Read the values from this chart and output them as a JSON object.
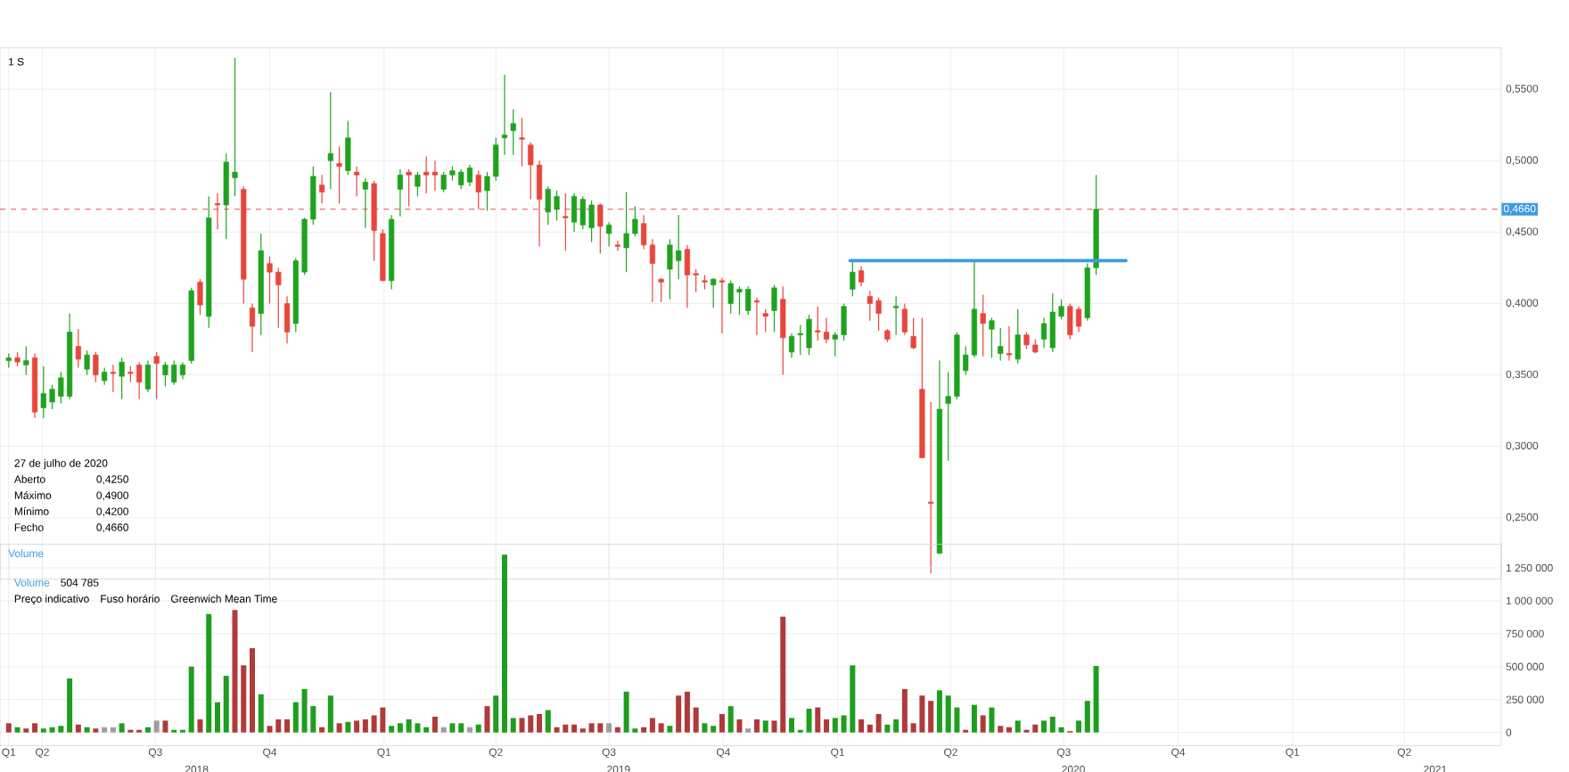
{
  "chart_data": [
    {
      "type": "candlestick",
      "title": "1 S",
      "x": [
        "2018-03-05",
        "2018-03-12",
        "2018-03-19",
        "2018-03-26",
        "2018-04-02",
        "2018-04-09",
        "2018-04-16",
        "2018-04-23",
        "2018-04-30",
        "2018-05-07",
        "2018-05-14",
        "2018-05-21",
        "2018-05-28",
        "2018-06-04",
        "2018-06-11",
        "2018-06-18",
        "2018-06-25",
        "2018-07-02",
        "2018-07-09",
        "2018-07-16",
        "2018-07-23",
        "2018-07-30",
        "2018-08-06",
        "2018-08-13",
        "2018-08-20",
        "2018-08-27",
        "2018-09-03",
        "2018-09-10",
        "2018-09-17",
        "2018-09-24",
        "2018-10-01",
        "2018-10-08",
        "2018-10-15",
        "2018-10-22",
        "2018-10-29",
        "2018-11-05",
        "2018-11-12",
        "2018-11-19",
        "2018-11-26",
        "2018-12-03",
        "2018-12-10",
        "2018-12-17",
        "2018-12-24",
        "2018-12-31",
        "2019-01-07",
        "2019-01-14",
        "2019-01-21",
        "2019-01-28",
        "2019-02-04",
        "2019-02-11",
        "2019-02-18",
        "2019-02-25",
        "2019-03-04",
        "2019-03-11",
        "2019-03-18",
        "2019-03-25",
        "2019-04-01",
        "2019-04-08",
        "2019-04-15",
        "2019-04-22",
        "2019-04-29",
        "2019-05-06",
        "2019-05-13",
        "2019-05-20",
        "2019-05-27",
        "2019-06-03",
        "2019-06-10",
        "2019-06-17",
        "2019-06-24",
        "2019-07-01",
        "2019-07-08",
        "2019-07-15",
        "2019-07-22",
        "2019-07-29",
        "2019-08-05",
        "2019-08-12",
        "2019-08-19",
        "2019-08-26",
        "2019-09-02",
        "2019-09-09",
        "2019-09-16",
        "2019-09-23",
        "2019-09-30",
        "2019-10-07",
        "2019-10-14",
        "2019-10-21",
        "2019-10-28",
        "2019-11-04",
        "2019-11-11",
        "2019-11-18",
        "2019-11-25",
        "2019-12-02",
        "2019-12-09",
        "2019-12-16",
        "2019-12-23",
        "2019-12-30",
        "2020-01-06",
        "2020-01-13",
        "2020-01-20",
        "2020-01-27",
        "2020-02-03",
        "2020-02-10",
        "2020-02-17",
        "2020-02-24",
        "2020-03-02",
        "2020-03-09",
        "2020-03-16",
        "2020-03-23",
        "2020-03-30",
        "2020-04-06",
        "2020-04-13",
        "2020-04-20",
        "2020-04-27",
        "2020-05-04",
        "2020-05-11",
        "2020-05-18",
        "2020-05-25",
        "2020-06-01",
        "2020-06-08",
        "2020-06-15",
        "2020-06-22",
        "2020-06-29",
        "2020-07-06",
        "2020-07-13",
        "2020-07-20",
        "2020-07-27"
      ],
      "ohlc": [
        [
          0.36,
          0.365,
          0.355,
          0.362
        ],
        [
          0.362,
          0.366,
          0.356,
          0.359
        ],
        [
          0.357,
          0.37,
          0.35,
          0.36
        ],
        [
          0.362,
          0.365,
          0.32,
          0.324
        ],
        [
          0.327,
          0.356,
          0.32,
          0.337
        ],
        [
          0.331,
          0.343,
          0.326,
          0.34
        ],
        [
          0.335,
          0.352,
          0.33,
          0.348
        ],
        [
          0.335,
          0.393,
          0.333,
          0.38
        ],
        [
          0.37,
          0.382,
          0.355,
          0.361
        ],
        [
          0.354,
          0.367,
          0.35,
          0.364
        ],
        [
          0.364,
          0.366,
          0.345,
          0.35
        ],
        [
          0.346,
          0.355,
          0.343,
          0.352
        ],
        [
          0.352,
          0.357,
          0.338,
          0.351
        ],
        [
          0.349,
          0.362,
          0.333,
          0.359
        ],
        [
          0.352,
          0.356,
          0.345,
          0.351
        ],
        [
          0.357,
          0.359,
          0.333,
          0.345
        ],
        [
          0.34,
          0.36,
          0.338,
          0.357
        ],
        [
          0.363,
          0.366,
          0.333,
          0.358
        ],
        [
          0.35,
          0.359,
          0.342,
          0.357
        ],
        [
          0.345,
          0.36,
          0.343,
          0.357
        ],
        [
          0.35,
          0.359,
          0.347,
          0.357
        ],
        [
          0.36,
          0.411,
          0.358,
          0.409
        ],
        [
          0.415,
          0.417,
          0.392,
          0.399
        ],
        [
          0.391,
          0.475,
          0.383,
          0.46
        ],
        [
          0.47,
          0.477,
          0.452,
          0.469
        ],
        [
          0.469,
          0.505,
          0.445,
          0.499
        ],
        [
          0.488,
          0.572,
          0.475,
          0.492
        ],
        [
          0.48,
          0.482,
          0.4,
          0.417
        ],
        [
          0.397,
          0.4,
          0.366,
          0.384
        ],
        [
          0.393,
          0.449,
          0.378,
          0.437
        ],
        [
          0.428,
          0.433,
          0.4,
          0.422
        ],
        [
          0.422,
          0.425,
          0.383,
          0.413
        ],
        [
          0.4,
          0.405,
          0.372,
          0.38
        ],
        [
          0.386,
          0.432,
          0.38,
          0.43
        ],
        [
          0.422,
          0.46,
          0.42,
          0.459
        ],
        [
          0.459,
          0.496,
          0.455,
          0.489
        ],
        [
          0.483,
          0.49,
          0.47,
          0.478
        ],
        [
          0.5,
          0.548,
          0.48,
          0.505
        ],
        [
          0.498,
          0.51,
          0.47,
          0.496
        ],
        [
          0.493,
          0.528,
          0.49,
          0.516
        ],
        [
          0.492,
          0.496,
          0.475,
          0.49
        ],
        [
          0.48,
          0.488,
          0.453,
          0.485
        ],
        [
          0.484,
          0.486,
          0.43,
          0.451
        ],
        [
          0.449,
          0.452,
          0.416,
          0.416
        ],
        [
          0.416,
          0.462,
          0.41,
          0.459
        ],
        [
          0.48,
          0.494,
          0.461,
          0.49
        ],
        [
          0.492,
          0.494,
          0.468,
          0.49
        ],
        [
          0.482,
          0.492,
          0.475,
          0.49
        ],
        [
          0.492,
          0.503,
          0.477,
          0.49
        ],
        [
          0.492,
          0.5,
          0.479,
          0.49
        ],
        [
          0.48,
          0.492,
          0.478,
          0.49
        ],
        [
          0.49,
          0.496,
          0.486,
          0.493
        ],
        [
          0.483,
          0.494,
          0.48,
          0.492
        ],
        [
          0.485,
          0.497,
          0.482,
          0.495
        ],
        [
          0.49,
          0.493,
          0.466,
          0.478
        ],
        [
          0.479,
          0.492,
          0.465,
          0.489
        ],
        [
          0.489,
          0.516,
          0.486,
          0.511
        ],
        [
          0.516,
          0.56,
          0.504,
          0.518
        ],
        [
          0.521,
          0.536,
          0.504,
          0.526
        ],
        [
          0.516,
          0.53,
          0.496,
          0.515
        ],
        [
          0.511,
          0.513,
          0.473,
          0.497
        ],
        [
          0.497,
          0.5,
          0.44,
          0.473
        ],
        [
          0.464,
          0.482,
          0.455,
          0.48
        ],
        [
          0.466,
          0.479,
          0.458,
          0.475
        ],
        [
          0.461,
          0.477,
          0.437,
          0.46
        ],
        [
          0.457,
          0.477,
          0.45,
          0.475
        ],
        [
          0.455,
          0.475,
          0.452,
          0.473
        ],
        [
          0.453,
          0.472,
          0.443,
          0.469
        ],
        [
          0.469,
          0.47,
          0.435,
          0.454
        ],
        [
          0.449,
          0.457,
          0.44,
          0.455
        ],
        [
          0.441,
          0.444,
          0.437,
          0.44
        ],
        [
          0.439,
          0.478,
          0.422,
          0.449
        ],
        [
          0.449,
          0.468,
          0.447,
          0.459
        ],
        [
          0.456,
          0.462,
          0.438,
          0.441
        ],
        [
          0.441,
          0.445,
          0.401,
          0.428
        ],
        [
          0.417,
          0.418,
          0.401,
          0.415
        ],
        [
          0.424,
          0.445,
          0.403,
          0.441
        ],
        [
          0.43,
          0.462,
          0.417,
          0.437
        ],
        [
          0.438,
          0.441,
          0.397,
          0.42
        ],
        [
          0.421,
          0.424,
          0.408,
          0.42
        ],
        [
          0.416,
          0.42,
          0.41,
          0.415
        ],
        [
          0.413,
          0.418,
          0.397,
          0.417
        ],
        [
          0.416,
          0.418,
          0.379,
          0.415
        ],
        [
          0.4,
          0.416,
          0.393,
          0.414
        ],
        [
          0.408,
          0.412,
          0.392,
          0.41
        ],
        [
          0.395,
          0.412,
          0.392,
          0.41
        ],
        [
          0.402,
          0.404,
          0.378,
          0.401
        ],
        [
          0.393,
          0.396,
          0.38,
          0.391
        ],
        [
          0.395,
          0.413,
          0.38,
          0.411
        ],
        [
          0.403,
          0.412,
          0.35,
          0.376
        ],
        [
          0.366,
          0.379,
          0.362,
          0.377
        ],
        [
          0.378,
          0.385,
          0.364,
          0.379
        ],
        [
          0.369,
          0.392,
          0.364,
          0.389
        ],
        [
          0.381,
          0.398,
          0.374,
          0.38
        ],
        [
          0.38,
          0.39,
          0.372,
          0.375
        ],
        [
          0.375,
          0.38,
          0.363,
          0.378
        ],
        [
          0.378,
          0.4,
          0.374,
          0.398
        ],
        [
          0.41,
          0.429,
          0.405,
          0.422
        ],
        [
          0.423,
          0.426,
          0.412,
          0.415
        ],
        [
          0.405,
          0.409,
          0.388,
          0.4
        ],
        [
          0.402,
          0.404,
          0.381,
          0.393
        ],
        [
          0.381,
          0.382,
          0.373,
          0.375
        ],
        [
          0.397,
          0.405,
          0.378,
          0.398
        ],
        [
          0.396,
          0.4,
          0.378,
          0.38
        ],
        [
          0.377,
          0.39,
          0.368,
          0.369
        ],
        [
          0.34,
          0.39,
          0.292,
          0.292
        ],
        [
          0.261,
          0.331,
          0.211,
          0.26
        ],
        [
          0.225,
          0.36,
          0.225,
          0.326
        ],
        [
          0.33,
          0.352,
          0.29,
          0.335
        ],
        [
          0.335,
          0.38,
          0.333,
          0.378
        ],
        [
          0.353,
          0.37,
          0.35,
          0.364
        ],
        [
          0.364,
          0.429,
          0.362,
          0.396
        ],
        [
          0.393,
          0.406,
          0.363,
          0.386
        ],
        [
          0.382,
          0.39,
          0.362,
          0.388
        ],
        [
          0.365,
          0.383,
          0.36,
          0.37
        ],
        [
          0.365,
          0.384,
          0.36,
          0.364
        ],
        [
          0.361,
          0.396,
          0.358,
          0.378
        ],
        [
          0.378,
          0.38,
          0.368,
          0.371
        ],
        [
          0.371,
          0.375,
          0.365,
          0.366
        ],
        [
          0.375,
          0.39,
          0.369,
          0.386
        ],
        [
          0.369,
          0.407,
          0.366,
          0.394
        ],
        [
          0.391,
          0.403,
          0.389,
          0.398
        ],
        [
          0.398,
          0.4,
          0.375,
          0.378
        ],
        [
          0.396,
          0.398,
          0.38,
          0.384
        ],
        [
          0.39,
          0.428,
          0.388,
          0.425
        ],
        [
          0.425,
          0.49,
          0.42,
          0.466
        ]
      ],
      "colors": [
        "#1fa31f",
        "#e8463c",
        "#1fa31f",
        "#e8463c",
        "#1fa31f",
        "#1fa31f",
        "#1fa31f",
        "#1fa31f",
        "#e8463c",
        "#1fa31f",
        "#e8463c",
        "#1fa31f",
        "#e8463c",
        "#1fa31f",
        "#e8463c",
        "#e8463c",
        "#1fa31f",
        "#e8463c",
        "#1fa31f",
        "#1fa31f",
        "#1fa31f",
        "#1fa31f",
        "#e8463c",
        "#1fa31f",
        "#e8463c",
        "#1fa31f",
        "#1fa31f",
        "#e8463c",
        "#e8463c",
        "#1fa31f",
        "#e8463c",
        "#e8463c",
        "#e8463c",
        "#1fa31f",
        "#1fa31f",
        "#1fa31f",
        "#e8463c",
        "#1fa31f",
        "#e8463c",
        "#1fa31f",
        "#e8463c",
        "#1fa31f",
        "#e8463c",
        "#e8463c",
        "#1fa31f",
        "#1fa31f",
        "#e8463c",
        "#1fa31f",
        "#e8463c",
        "#e8463c",
        "#1fa31f",
        "#1fa31f",
        "#1fa31f",
        "#1fa31f",
        "#e8463c",
        "#1fa31f",
        "#1fa31f",
        "#1fa31f",
        "#1fa31f",
        "#e8463c",
        "#e8463c",
        "#e8463c",
        "#1fa31f",
        "#1fa31f",
        "#e8463c",
        "#1fa31f",
        "#1fa31f",
        "#1fa31f",
        "#e8463c",
        "#1fa31f",
        "#e8463c",
        "#1fa31f",
        "#1fa31f",
        "#e8463c",
        "#e8463c",
        "#e8463c",
        "#1fa31f",
        "#1fa31f",
        "#e8463c",
        "#e8463c",
        "#e8463c",
        "#1fa31f",
        "#e8463c",
        "#1fa31f",
        "#1fa31f",
        "#1fa31f",
        "#e8463c",
        "#e8463c",
        "#1fa31f",
        "#e8463c",
        "#1fa31f",
        "#1fa31f",
        "#1fa31f",
        "#e8463c",
        "#e8463c",
        "#1fa31f",
        "#1fa31f",
        "#1fa31f",
        "#e8463c",
        "#e8463c",
        "#e8463c",
        "#e8463c",
        "#1fa31f",
        "#e8463c",
        "#e8463c",
        "#e8463c",
        "#e8463c",
        "#1fa31f",
        "#1fa31f",
        "#1fa31f",
        "#1fa31f",
        "#1fa31f",
        "#e8463c",
        "#1fa31f",
        "#1fa31f",
        "#e8463c",
        "#1fa31f",
        "#e8463c",
        "#e8463c",
        "#1fa31f",
        "#1fa31f",
        "#1fa31f",
        "#e8463c",
        "#e8463c",
        "#1fa31f",
        "#1fa31f"
      ],
      "series": [
        {
          "type": "line",
          "x": [
            "2020-01-11",
            "2020-08-20"
          ],
          "values": [
            0.43,
            0.43
          ],
          "color": "#3d9be0"
        }
      ],
      "ref_lines": [
        {
          "axis": "y",
          "value": 0.466,
          "label": "0,4660",
          "color": "#e57373",
          "line_style": "dashed"
        }
      ],
      "xlim": [
        "2018-02-26",
        "2021-06-18"
      ],
      "xticks": [
        {
          "value": "2018-03-05",
          "label": null
        },
        {
          "value": "2018-04-01",
          "label": null
        },
        {
          "value": "2018-07-01",
          "label": null
        },
        {
          "value": "2018-10-01",
          "label": null
        },
        {
          "value": "2019-01-01",
          "label": null
        },
        {
          "value": "2019-04-01",
          "label": null
        },
        {
          "value": "2019-07-01",
          "label": null
        },
        {
          "value": "2019-10-01",
          "label": null
        },
        {
          "value": "2020-01-01",
          "label": null
        },
        {
          "value": "2020-04-01",
          "label": null
        },
        {
          "value": "2020-07-01",
          "label": null
        },
        {
          "value": "2020-10-01",
          "label": null
        },
        {
          "value": "2021-01-01",
          "label": null
        },
        {
          "value": "2021-04-01",
          "label": null
        }
      ],
      "ylim": [
        0.207,
        0.579
      ],
      "yticks": [
        {
          "value": 0.25,
          "label": "0,2500"
        },
        {
          "value": 0.3,
          "label": "0,3000"
        },
        {
          "value": 0.35,
          "label": "0,3500"
        },
        {
          "value": 0.4,
          "label": "0,4000"
        },
        {
          "value": 0.45,
          "label": "0,4500"
        },
        {
          "value": 0.5,
          "label": "0,5000"
        },
        {
          "value": 0.55,
          "label": "0,5500"
        }
      ],
      "grid": true,
      "tick_labels": "y",
      "annotations": [
        "27 de julho de 2020",
        "Aberto",
        "0,4250",
        "Máximo",
        "0,4900",
        "Mínimo",
        "0,4200",
        "Fecho",
        "0,4660"
      ]
    },
    {
      "type": "bar",
      "title": "Volume",
      "x": [
        "2018-03-05",
        "2018-03-12",
        "2018-03-19",
        "2018-03-26",
        "2018-04-02",
        "2018-04-09",
        "2018-04-16",
        "2018-04-23",
        "2018-04-30",
        "2018-05-07",
        "2018-05-14",
        "2018-05-21",
        "2018-05-28",
        "2018-06-04",
        "2018-06-11",
        "2018-06-18",
        "2018-06-25",
        "2018-07-02",
        "2018-07-09",
        "2018-07-16",
        "2018-07-23",
        "2018-07-30",
        "2018-08-06",
        "2018-08-13",
        "2018-08-20",
        "2018-08-27",
        "2018-09-03",
        "2018-09-10",
        "2018-09-17",
        "2018-09-24",
        "2018-10-01",
        "2018-10-08",
        "2018-10-15",
        "2018-10-22",
        "2018-10-29",
        "2018-11-05",
        "2018-11-12",
        "2018-11-19",
        "2018-11-26",
        "2018-12-03",
        "2018-12-10",
        "2018-12-17",
        "2018-12-24",
        "2018-12-31",
        "2019-01-07",
        "2019-01-14",
        "2019-01-21",
        "2019-01-28",
        "2019-02-04",
        "2019-02-11",
        "2019-02-18",
        "2019-02-25",
        "2019-03-04",
        "2019-03-11",
        "2019-03-18",
        "2019-03-25",
        "2019-04-01",
        "2019-04-08",
        "2019-04-15",
        "2019-04-22",
        "2019-04-29",
        "2019-05-06",
        "2019-05-13",
        "2019-05-20",
        "2019-05-27",
        "2019-06-03",
        "2019-06-10",
        "2019-06-17",
        "2019-06-24",
        "2019-07-01",
        "2019-07-08",
        "2019-07-15",
        "2019-07-22",
        "2019-07-29",
        "2019-08-05",
        "2019-08-12",
        "2019-08-19",
        "2019-08-26",
        "2019-09-02",
        "2019-09-09",
        "2019-09-16",
        "2019-09-23",
        "2019-09-30",
        "2019-10-07",
        "2019-10-14",
        "2019-10-21",
        "2019-10-28",
        "2019-11-04",
        "2019-11-11",
        "2019-11-18",
        "2019-11-25",
        "2019-12-02",
        "2019-12-09",
        "2019-12-16",
        "2019-12-23",
        "2019-12-30",
        "2020-01-06",
        "2020-01-13",
        "2020-01-20",
        "2020-01-27",
        "2020-02-03",
        "2020-02-10",
        "2020-02-17",
        "2020-02-24",
        "2020-03-02",
        "2020-03-09",
        "2020-03-16",
        "2020-03-23",
        "2020-03-30",
        "2020-04-06",
        "2020-04-13",
        "2020-04-20",
        "2020-04-27",
        "2020-05-04",
        "2020-05-11",
        "2020-05-18",
        "2020-05-25",
        "2020-06-01",
        "2020-06-08",
        "2020-06-15",
        "2020-06-22",
        "2020-06-29",
        "2020-07-06",
        "2020-07-13",
        "2020-07-20",
        "2020-07-27"
      ],
      "values": [
        70000,
        40000,
        30000,
        70000,
        30000,
        40000,
        50000,
        410000,
        60000,
        40000,
        30000,
        40000,
        40000,
        70000,
        20000,
        20000,
        40000,
        90000,
        90000,
        20000,
        20000,
        500000,
        100000,
        900000,
        230000,
        430000,
        930000,
        510000,
        640000,
        290000,
        50000,
        100000,
        100000,
        230000,
        330000,
        200000,
        40000,
        280000,
        70000,
        80000,
        90000,
        100000,
        130000,
        190000,
        50000,
        70000,
        100000,
        70000,
        40000,
        120000,
        40000,
        70000,
        70000,
        40000,
        60000,
        200000,
        280000,
        1350000,
        110000,
        110000,
        130000,
        140000,
        170000,
        40000,
        60000,
        60000,
        30000,
        70000,
        70000,
        70000,
        40000,
        310000,
        30000,
        40000,
        110000,
        70000,
        50000,
        280000,
        310000,
        190000,
        70000,
        50000,
        140000,
        200000,
        100000,
        30000,
        100000,
        90000,
        90000,
        880000,
        110000,
        20000,
        180000,
        190000,
        100000,
        110000,
        130000,
        510000,
        100000,
        60000,
        140000,
        60000,
        100000,
        330000,
        70000,
        280000,
        240000,
        320000,
        280000,
        190000,
        20000,
        210000,
        130000,
        190000,
        50000,
        40000,
        90000,
        20000,
        60000,
        90000,
        120000,
        40000,
        10000,
        90000,
        240000,
        504785
      ],
      "colors": [
        "#b03a3a",
        "#1e9e1e",
        "#b03a3a",
        "#b03a3a",
        "#1e9e1e",
        "#1e9e1e",
        "#1e9e1e",
        "#1e9e1e",
        "#b03a3a",
        "#1e9e1e",
        "#b03a3a",
        "#9e9e9e",
        "#9e9e9e",
        "#1e9e1e",
        "#b03a3a",
        "#b03a3a",
        "#1e9e1e",
        "#9e9e9e",
        "#b03a3a",
        "#1e9e1e",
        "#1e9e1e",
        "#1e9e1e",
        "#b03a3a",
        "#1e9e1e",
        "#1e9e1e",
        "#1e9e1e",
        "#b03a3a",
        "#b03a3a",
        "#b03a3a",
        "#1e9e1e",
        "#b03a3a",
        "#b03a3a",
        "#b03a3a",
        "#1e9e1e",
        "#1e9e1e",
        "#1e9e1e",
        "#b03a3a",
        "#1e9e1e",
        "#b03a3a",
        "#1e9e1e",
        "#b03a3a",
        "#b03a3a",
        "#b03a3a",
        "#b03a3a",
        "#1e9e1e",
        "#1e9e1e",
        "#1e9e1e",
        "#1e9e1e",
        "#1e9e1e",
        "#b03a3a",
        "#9e9e9e",
        "#1e9e1e",
        "#1e9e1e",
        "#9e9e9e",
        "#1e9e1e",
        "#b03a3a",
        "#1e9e1e",
        "#1e9e1e",
        "#1e9e1e",
        "#b03a3a",
        "#b03a3a",
        "#b03a3a",
        "#1e9e1e",
        "#b03a3a",
        "#b03a3a",
        "#b03a3a",
        "#b03a3a",
        "#b03a3a",
        "#b03a3a",
        "#9e9e9e",
        "#b03a3a",
        "#1e9e1e",
        "#1e9e1e",
        "#b03a3a",
        "#b03a3a",
        "#b03a3a",
        "#1e9e1e",
        "#b03a3a",
        "#b03a3a",
        "#b03a3a",
        "#1e9e1e",
        "#1e9e1e",
        "#b03a3a",
        "#1e9e1e",
        "#b03a3a",
        "#9e9e9e",
        "#b03a3a",
        "#1e9e1e",
        "#b03a3a",
        "#b03a3a",
        "#1e9e1e",
        "#1e9e1e",
        "#1e9e1e",
        "#b03a3a",
        "#b03a3a",
        "#1e9e1e",
        "#1e9e1e",
        "#1e9e1e",
        "#b03a3a",
        "#b03a3a",
        "#b03a3a",
        "#1e9e1e",
        "#1e9e1e",
        "#b03a3a",
        "#b03a3a",
        "#b03a3a",
        "#b03a3a",
        "#1e9e1e",
        "#1e9e1e",
        "#1e9e1e",
        "#b03a3a",
        "#1e9e1e",
        "#b03a3a",
        "#1e9e1e",
        "#b03a3a",
        "#b03a3a",
        "#1e9e1e",
        "#b03a3a",
        "#b03a3a",
        "#1e9e1e",
        "#1e9e1e",
        "#1e9e1e",
        "#b03a3a",
        "#1e9e1e",
        "#1e9e1e",
        "#1e9e1e"
      ],
      "xlim": [
        "2018-02-26",
        "2021-06-18"
      ],
      "xticks": [
        {
          "value": "2018-03-05",
          "label": "Q1"
        },
        {
          "value": "2018-04-01",
          "label": "Q2"
        },
        {
          "value": "2018-07-01",
          "label": "Q3"
        },
        {
          "value": "2018-10-01",
          "label": "Q4"
        },
        {
          "value": "2019-01-01",
          "label": "Q1"
        },
        {
          "value": "2019-04-01",
          "label": "Q2"
        },
        {
          "value": "2019-07-01",
          "label": "Q3"
        },
        {
          "value": "2019-10-01",
          "label": "Q4"
        },
        {
          "value": "2020-01-01",
          "label": "Q1"
        },
        {
          "value": "2020-04-01",
          "label": "Q2"
        },
        {
          "value": "2020-07-01",
          "label": "Q3"
        },
        {
          "value": "2020-10-01",
          "label": "Q4"
        },
        {
          "value": "2021-01-01",
          "label": "Q1"
        },
        {
          "value": "2021-04-01",
          "label": "Q2"
        }
      ],
      "ylim": [
        -100000,
        1430000
      ],
      "yticks": [
        0,
        {
          "value": 250000,
          "label": "250 000"
        },
        {
          "value": 500000,
          "label": "500 000"
        },
        {
          "value": 750000,
          "label": "750 000"
        },
        {
          "value": 1000000,
          "label": "1 000 000"
        },
        {
          "value": 1250000,
          "label": "1 250 000"
        }
      ],
      "grid": true,
      "annotations": [
        "Volume",
        "504 785",
        "Preço indicativo",
        "Fuso horário",
        "Greenwich Mean Time",
        "2018",
        "2019",
        "2020",
        "2021"
      ]
    }
  ]
}
